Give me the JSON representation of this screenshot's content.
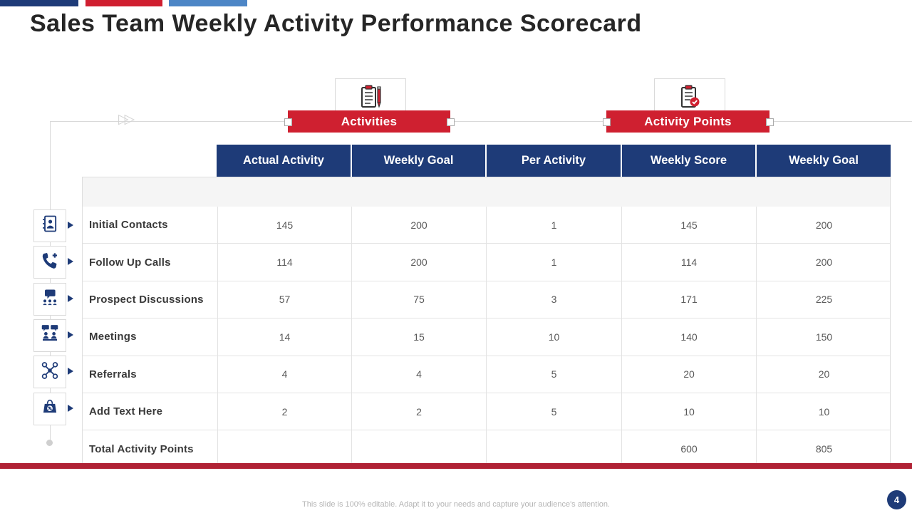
{
  "slide": {
    "title": "Sales Team Weekly Activity Performance Scorecard",
    "page_number": "4",
    "footer_note": "This slide is 100% editable.  Adapt it to your needs and capture your audience's attention."
  },
  "colors": {
    "navy": "#1e3b78",
    "banner_red": "#cf2030",
    "top_bar_red": "#d01f30",
    "top_bar_light_blue": "#4d86c6",
    "bottom_bar_red": "#b02235",
    "grid_border": "#e3e3e3",
    "value_text": "#595959"
  },
  "group_banners": [
    {
      "label": "Activities",
      "icon": "clipboard-pen-icon"
    },
    {
      "label": "Activity Points",
      "icon": "clipboard-check-icon"
    }
  ],
  "table": {
    "columns": [
      "Actual Activity",
      "Weekly Goal",
      "Per Activity",
      "Weekly Score",
      "Weekly Goal"
    ],
    "rows": [
      {
        "label": "Initial Contacts",
        "icon": "contact-book-icon",
        "values": [
          "145",
          "200",
          "1",
          "145",
          "200"
        ]
      },
      {
        "label": "Follow Up Calls",
        "icon": "phone-plus-icon",
        "values": [
          "114",
          "200",
          "1",
          "114",
          "200"
        ]
      },
      {
        "label": "Prospect Discussions",
        "icon": "discussion-icon",
        "values": [
          "57",
          "75",
          "3",
          "171",
          "225"
        ]
      },
      {
        "label": "Meetings",
        "icon": "meeting-icon",
        "values": [
          "14",
          "15",
          "10",
          "140",
          "150"
        ]
      },
      {
        "label": "Referrals",
        "icon": "referral-network-icon",
        "values": [
          "4",
          "4",
          "5",
          "20",
          "20"
        ]
      },
      {
        "label": "Add Text Here",
        "icon": "discount-bag-icon",
        "values": [
          "2",
          "2",
          "5",
          "10",
          "10"
        ]
      },
      {
        "label": "Total Activity Points",
        "icon": null,
        "values": [
          "",
          "",
          "",
          "600",
          "805"
        ]
      }
    ]
  }
}
